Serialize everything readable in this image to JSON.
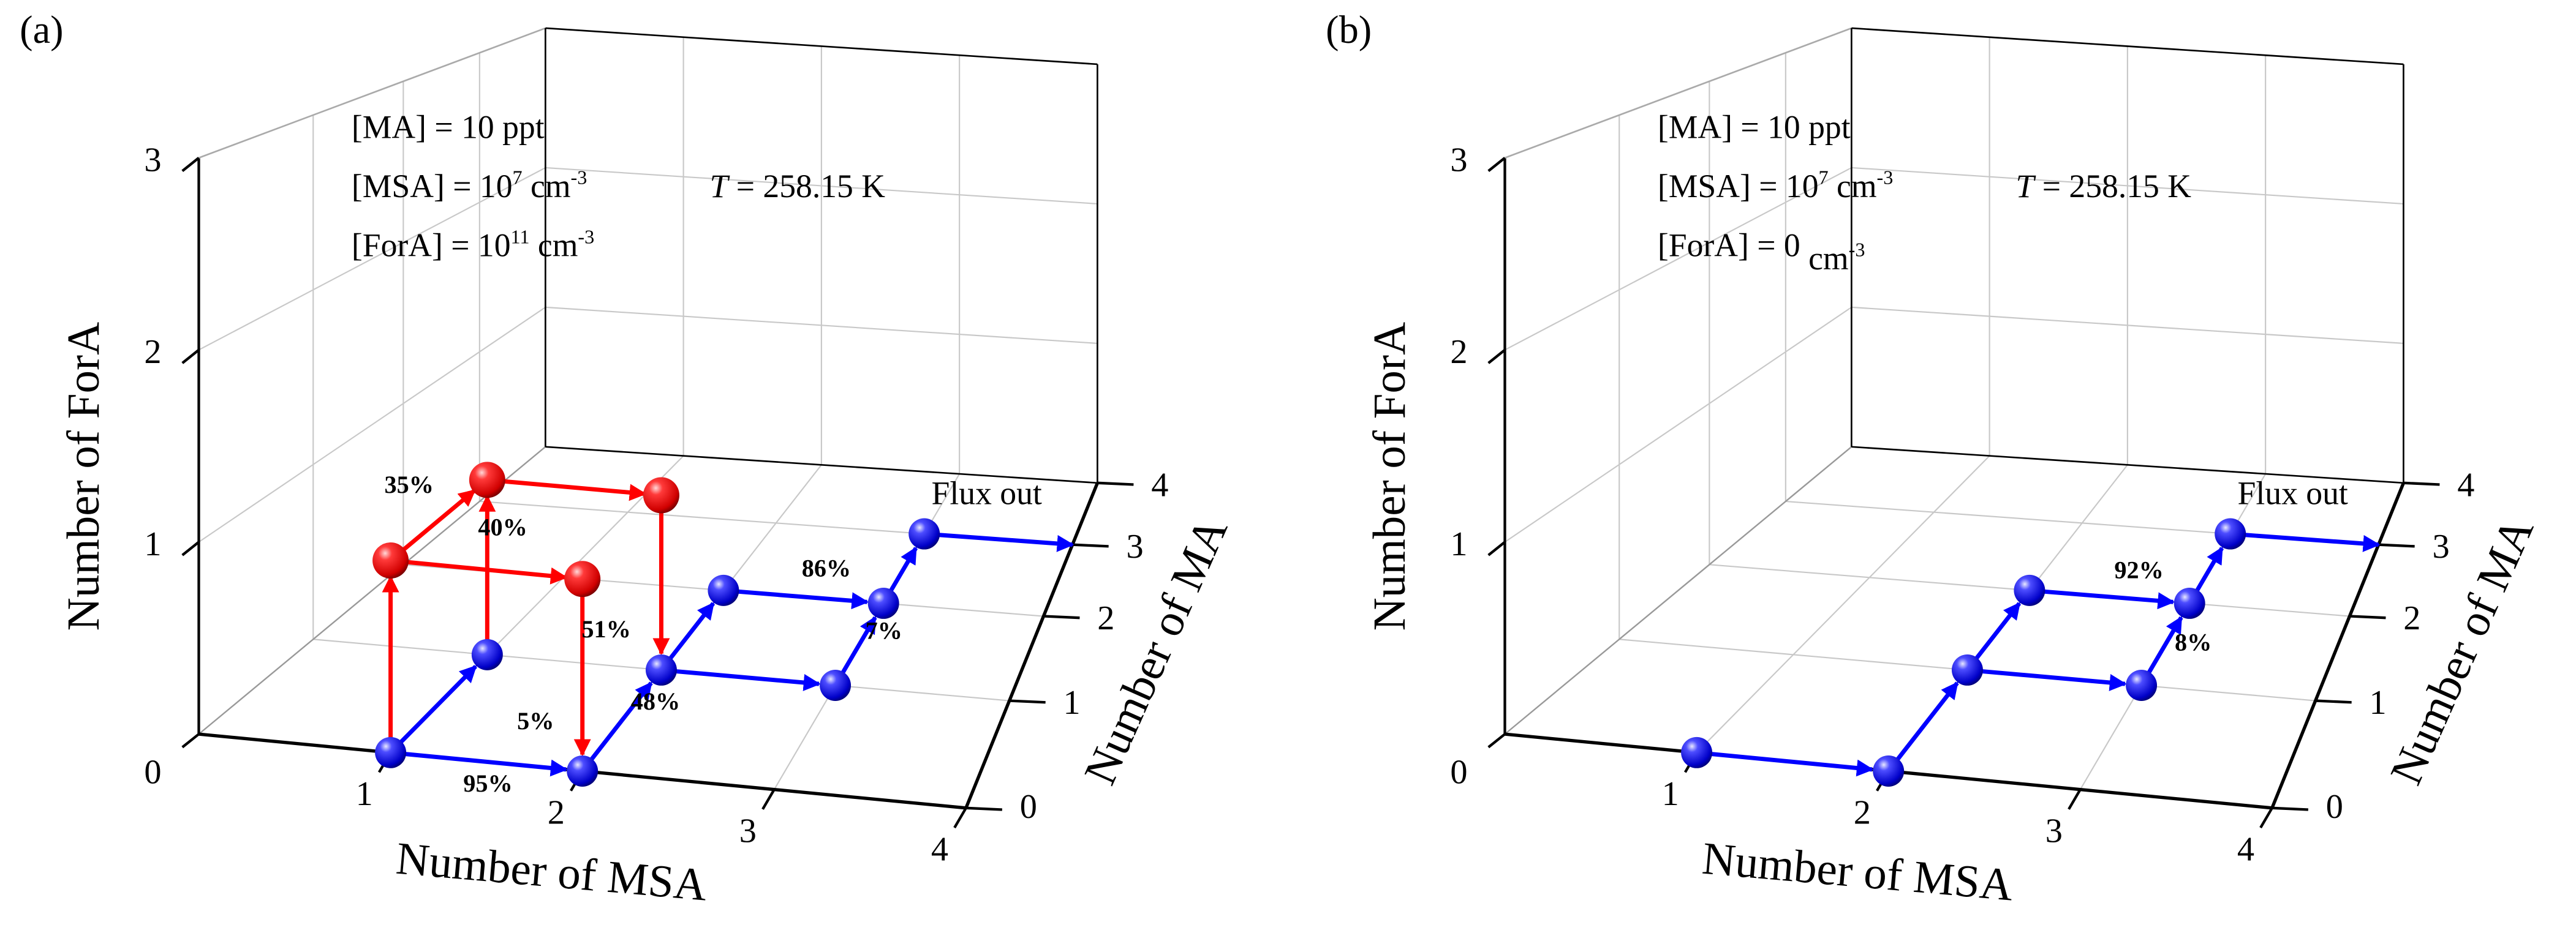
{
  "chart_data": [
    {
      "type": "scatter",
      "panel_label": "(a)",
      "xlabel": "Number of MSA",
      "ylabel": "Number of MA",
      "zlabel": "Number of ForA",
      "x_ticks": [
        "1",
        "2",
        "3",
        "4"
      ],
      "y_ticks": [
        "0",
        "1",
        "2",
        "3",
        "4"
      ],
      "z_ticks": [
        "0",
        "1",
        "2",
        "3"
      ],
      "xlim": [
        0,
        4
      ],
      "ylim": [
        0,
        4
      ],
      "zlim": [
        0,
        3
      ],
      "annotations": {
        "ma": "[MA] = 10 ppt",
        "msa_base": "[MSA] = 10",
        "msa_exp": "7",
        "msa_unit": " cm",
        "msa_unit_exp": "-3",
        "fora_base": "[ForA] = 10",
        "fora_exp": "11",
        "fora_unit": " cm",
        "fora_unit_exp": "-3",
        "t_symbol": "T",
        "t_value": " = 258.15 K"
      },
      "flux_out_label": "Flux out",
      "colors": {
        "msa_ma": "#0000ff",
        "fora": "#ff0000"
      },
      "nodes": [
        {
          "msa": 1,
          "ma": 0,
          "fora": 0
        },
        {
          "msa": 2,
          "ma": 0,
          "fora": 0
        },
        {
          "msa": 1,
          "ma": 1,
          "fora": 0
        },
        {
          "msa": 2,
          "ma": 1,
          "fora": 0
        },
        {
          "msa": 2,
          "ma": 2,
          "fora": 0
        },
        {
          "msa": 3,
          "ma": 1,
          "fora": 0
        },
        {
          "msa": 3,
          "ma": 2,
          "fora": 0
        },
        {
          "msa": 3,
          "ma": 3,
          "fora": 0
        },
        {
          "msa": 1,
          "ma": 0,
          "fora": 1
        },
        {
          "msa": 1,
          "ma": 1,
          "fora": 1
        },
        {
          "msa": 2,
          "ma": 0,
          "fora": 1
        },
        {
          "msa": 2,
          "ma": 1,
          "fora": 1
        }
      ],
      "edges": [
        {
          "from": [
            1,
            0,
            0
          ],
          "to": [
            2,
            0,
            0
          ],
          "label": "95%"
        },
        {
          "from": [
            1,
            0,
            0
          ],
          "to": [
            1,
            1,
            0
          ],
          "label": ""
        },
        {
          "from": [
            1,
            0,
            0
          ],
          "to": [
            1,
            0,
            1
          ],
          "label": ""
        },
        {
          "from": [
            1,
            1,
            0
          ],
          "to": [
            1,
            1,
            1
          ],
          "label": "40%"
        },
        {
          "from": [
            1,
            0,
            1
          ],
          "to": [
            1,
            1,
            1
          ],
          "label": "35%"
        },
        {
          "from": [
            1,
            0,
            1
          ],
          "to": [
            2,
            0,
            1
          ],
          "label": ""
        },
        {
          "from": [
            1,
            1,
            1
          ],
          "to": [
            2,
            1,
            1
          ],
          "label": ""
        },
        {
          "from": [
            2,
            0,
            1
          ],
          "to": [
            2,
            0,
            0
          ],
          "label": "5%"
        },
        {
          "from": [
            2,
            1,
            1
          ],
          "to": [
            2,
            1,
            0
          ],
          "label": "51%"
        },
        {
          "from": [
            2,
            0,
            0
          ],
          "to": [
            2,
            1,
            0
          ],
          "label": "48%"
        },
        {
          "from": [
            2,
            1,
            0
          ],
          "to": [
            2,
            2,
            0
          ],
          "label": ""
        },
        {
          "from": [
            2,
            1,
            0
          ],
          "to": [
            3,
            1,
            0
          ],
          "label": ""
        },
        {
          "from": [
            2,
            2,
            0
          ],
          "to": [
            3,
            2,
            0
          ],
          "label": "86%"
        },
        {
          "from": [
            3,
            1,
            0
          ],
          "to": [
            3,
            2,
            0
          ],
          "label": "7%"
        },
        {
          "from": [
            3,
            2,
            0
          ],
          "to": [
            3,
            3,
            0
          ],
          "label": ""
        },
        {
          "from": [
            3,
            3,
            0
          ],
          "to": [
            4,
            3,
            0
          ],
          "label": "",
          "flux_out": true
        }
      ]
    },
    {
      "type": "scatter",
      "panel_label": "(b)",
      "xlabel": "Number of MSA",
      "ylabel": "Number of MA",
      "zlabel": "Number of ForA",
      "x_ticks": [
        "1",
        "2",
        "3",
        "4"
      ],
      "y_ticks": [
        "0",
        "1",
        "2",
        "3",
        "4"
      ],
      "z_ticks": [
        "0",
        "1",
        "2",
        "3"
      ],
      "xlim": [
        0,
        4
      ],
      "ylim": [
        0,
        4
      ],
      "zlim": [
        0,
        3
      ],
      "annotations": {
        "ma": "[MA] = 10 ppt",
        "msa_base": "[MSA] = 10",
        "msa_exp": "7",
        "msa_unit": " cm",
        "msa_unit_exp": "-3",
        "fora_base": "[ForA] = 0",
        "fora_exp": "",
        "fora_unit": " cm",
        "fora_unit_exp": "-3",
        "t_symbol": "T",
        "t_value": " = 258.15 K"
      },
      "flux_out_label": "Flux out",
      "colors": {
        "msa_ma": "#0000ff",
        "fora": "#ff0000"
      },
      "nodes": [
        {
          "msa": 1,
          "ma": 0,
          "fora": 0
        },
        {
          "msa": 2,
          "ma": 0,
          "fora": 0
        },
        {
          "msa": 2,
          "ma": 1,
          "fora": 0
        },
        {
          "msa": 2,
          "ma": 2,
          "fora": 0
        },
        {
          "msa": 3,
          "ma": 1,
          "fora": 0
        },
        {
          "msa": 3,
          "ma": 2,
          "fora": 0
        },
        {
          "msa": 3,
          "ma": 3,
          "fora": 0
        }
      ],
      "edges": [
        {
          "from": [
            1,
            0,
            0
          ],
          "to": [
            2,
            0,
            0
          ],
          "label": ""
        },
        {
          "from": [
            2,
            0,
            0
          ],
          "to": [
            2,
            1,
            0
          ],
          "label": ""
        },
        {
          "from": [
            2,
            1,
            0
          ],
          "to": [
            2,
            2,
            0
          ],
          "label": ""
        },
        {
          "from": [
            2,
            1,
            0
          ],
          "to": [
            3,
            1,
            0
          ],
          "label": ""
        },
        {
          "from": [
            2,
            2,
            0
          ],
          "to": [
            3,
            2,
            0
          ],
          "label": "92%"
        },
        {
          "from": [
            3,
            1,
            0
          ],
          "to": [
            3,
            2,
            0
          ],
          "label": "8%"
        },
        {
          "from": [
            3,
            2,
            0
          ],
          "to": [
            3,
            3,
            0
          ],
          "label": ""
        },
        {
          "from": [
            3,
            3,
            0
          ],
          "to": [
            4,
            3,
            0
          ],
          "label": "",
          "flux_out": true
        }
      ]
    }
  ]
}
